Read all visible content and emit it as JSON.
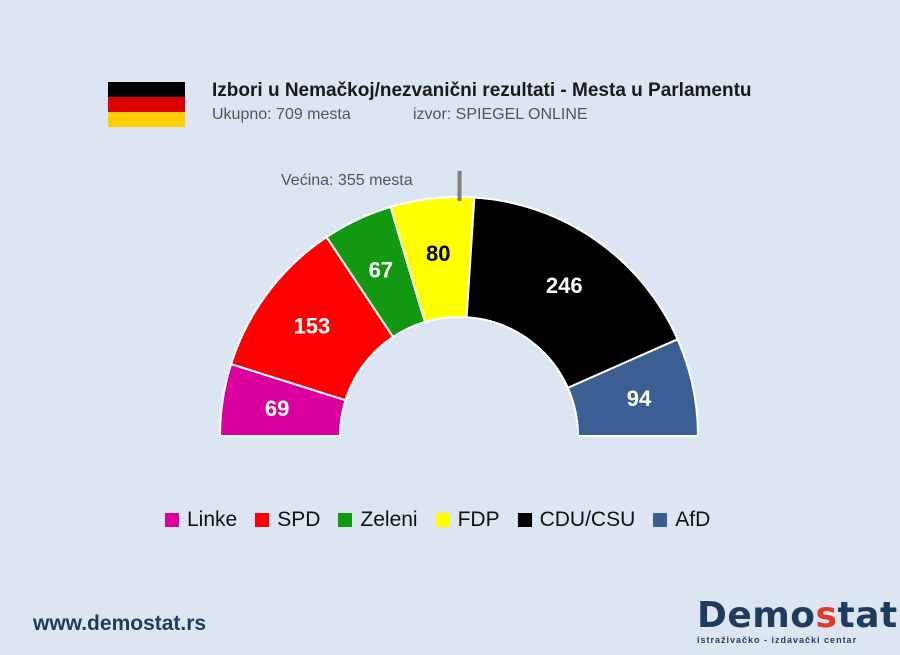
{
  "flag": {
    "name": "germany-flag-icon",
    "colors": [
      "#000000",
      "#dd0000",
      "#ffce00"
    ]
  },
  "header": {
    "title": "Izbori u Nemačkoj/nezvanični rezultati  - Mesta u Parlamentu",
    "subtitle": "Ukupno: 709 mesta",
    "source": "izvor: SPIEGEL ONLINE"
  },
  "majority_label": "Većina: 355 mesta",
  "chart_data": {
    "type": "pie",
    "style": "half-donut (parliament)",
    "title": "Izbori u Nemačkoj/nezvanični rezultati  - Mesta u Parlamentu",
    "total": 709,
    "majority": 355,
    "categories": [
      "Linke",
      "SPD",
      "Zeleni",
      "FDP",
      "CDU/CSU",
      "AfD"
    ],
    "values": [
      69,
      153,
      67,
      80,
      246,
      94
    ],
    "colors": [
      "#d9009e",
      "#ff0000",
      "#129812",
      "#ffff00",
      "#000000",
      "#3b5f93"
    ],
    "label_colors": [
      "#ffffff",
      "#ffffff",
      "#ffffff",
      "#000000",
      "#ffffff",
      "#ffffff"
    ],
    "legend_position": "bottom"
  },
  "footer": {
    "url": "www.demostat.rs",
    "logo_part1": "Demo",
    "logo_part2": "s",
    "logo_part3": "tat",
    "logo_tagline": "istraživačko - izdavački  centar"
  }
}
